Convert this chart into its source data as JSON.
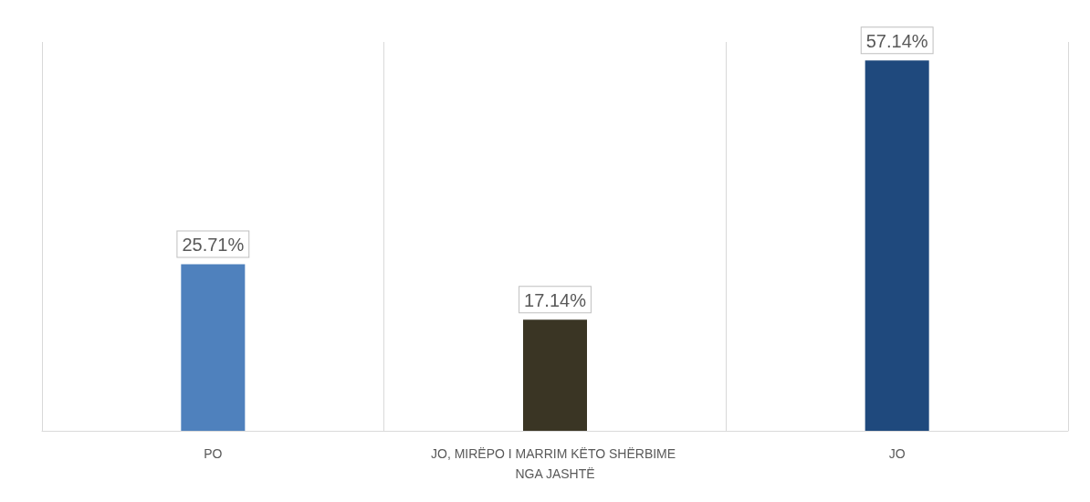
{
  "chart_data": {
    "type": "bar",
    "categories": [
      "PO",
      "JO, MIRËPO I MARRIM KËTO SHËRBIME NGA JASHTË",
      "JO"
    ],
    "values": [
      25.71,
      17.14,
      57.14
    ],
    "colors": [
      "#4f81bd",
      "#3a3524",
      "#1f497d"
    ],
    "value_labels": [
      "25.71%",
      "17.14%",
      "57.14%"
    ],
    "grid": "x"
  }
}
